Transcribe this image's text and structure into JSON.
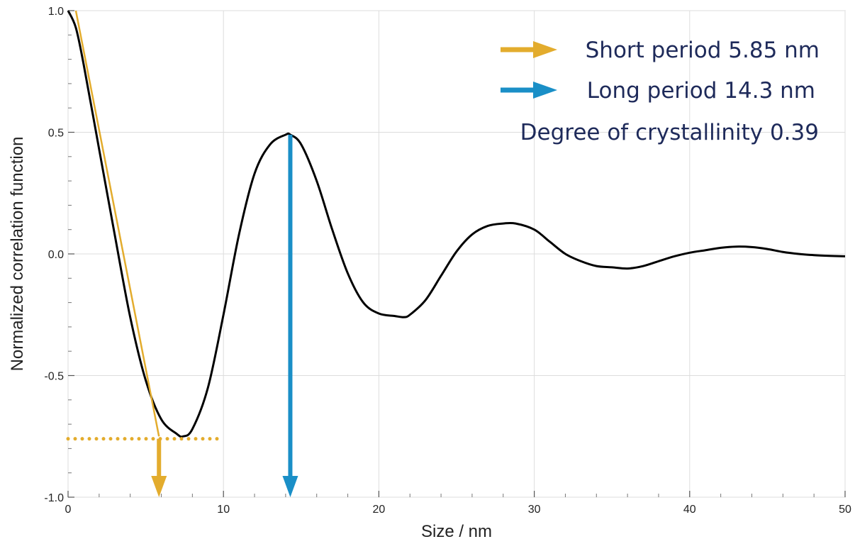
{
  "chart_data": {
    "type": "line",
    "xlabel": "Size / nm",
    "ylabel": "Normalized correlation function",
    "xlim": [
      0,
      50
    ],
    "ylim": [
      -1.0,
      1.0
    ],
    "grid": true,
    "x_ticks": [
      "0",
      "10",
      "20",
      "30",
      "40",
      "50"
    ],
    "y_ticks": [
      "-1.0",
      "-0.5",
      "0.0",
      "0.5",
      "1.0"
    ],
    "series": [
      {
        "color": "#000000",
        "x": [
          0,
          0.5,
          1,
          2,
          3,
          4,
          5,
          6,
          7,
          7.4,
          8,
          9,
          10,
          11,
          12,
          13,
          14,
          14.3,
          15,
          16,
          17,
          18,
          19,
          20,
          21,
          21.6,
          22,
          23,
          24,
          25,
          26,
          27,
          28,
          28.8,
          30,
          31,
          32,
          33,
          34,
          35,
          36,
          37,
          38,
          39,
          40,
          41,
          42,
          43,
          44,
          45,
          46,
          47,
          48,
          49,
          50
        ],
        "y": [
          1.0,
          0.93,
          0.78,
          0.43,
          0.08,
          -0.26,
          -0.52,
          -0.68,
          -0.74,
          -0.75,
          -0.72,
          -0.55,
          -0.25,
          0.08,
          0.33,
          0.45,
          0.49,
          0.49,
          0.45,
          0.3,
          0.1,
          -0.08,
          -0.2,
          -0.245,
          -0.255,
          -0.26,
          -0.25,
          -0.19,
          -0.09,
          0.01,
          0.08,
          0.115,
          0.125,
          0.125,
          0.1,
          0.05,
          0.0,
          -0.03,
          -0.05,
          -0.055,
          -0.06,
          -0.05,
          -0.03,
          -0.01,
          0.005,
          0.015,
          0.025,
          0.03,
          0.028,
          0.02,
          0.008,
          0.0,
          -0.005,
          -0.008,
          -0.01
        ]
      },
      {
        "color": "#e3ac2d",
        "x": [
          0.5,
          5.85
        ],
        "y": [
          1.0,
          -0.75
        ]
      }
    ],
    "annotations": {
      "short_period_line_y": -0.76,
      "short_period_line_x_range": [
        0,
        10
      ],
      "short_period_x": 5.85,
      "long_period_x": 14.3,
      "long_period_top_y": 0.49
    },
    "legend_placement": "top-right",
    "legend": [
      {
        "text": "Short period 5.85 nm",
        "arrow_color": "#e3ac2d"
      },
      {
        "text": "Long period 14.3 nm",
        "arrow_color": "#1a8fc7"
      },
      {
        "text": "Degree of crystallinity 0.39"
      }
    ]
  }
}
